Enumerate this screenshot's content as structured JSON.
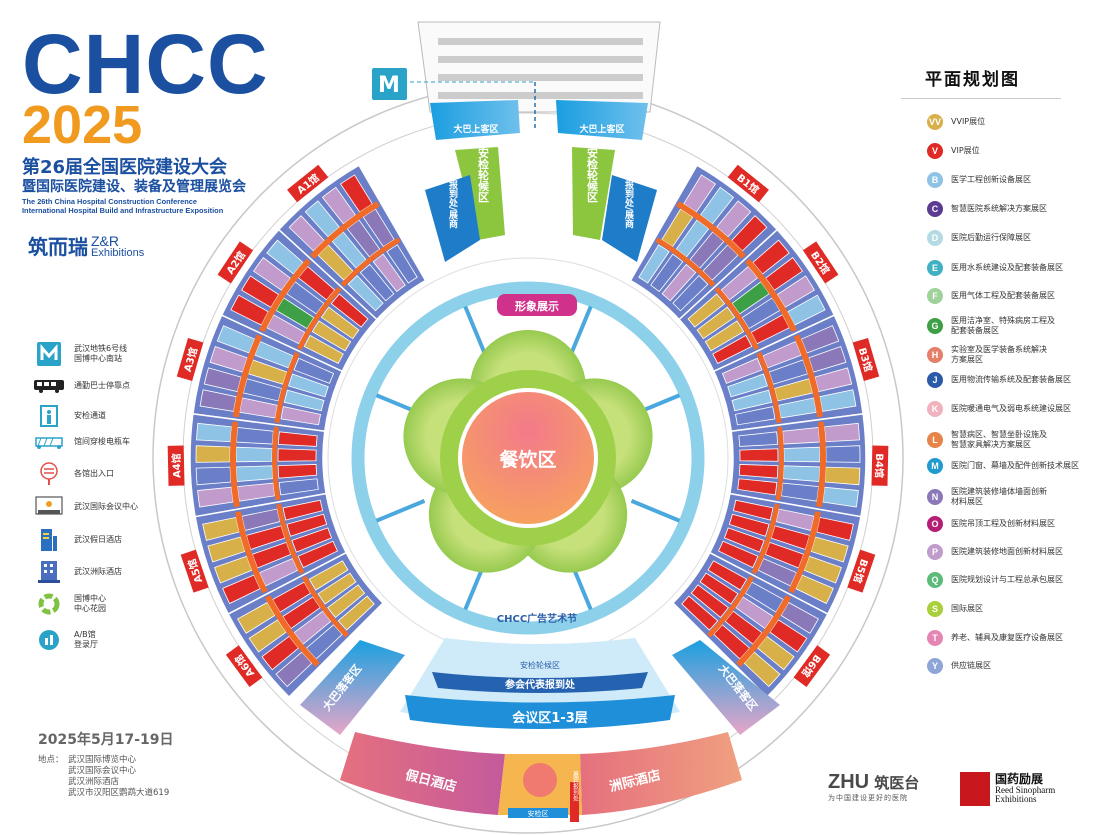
{
  "header": {
    "brand": "CHCC",
    "year": "2025",
    "title_cn_1": "第26届全国医院建设大会",
    "title_cn_2": "暨国际医院建设、装备及管理展览会",
    "title_en_1": "The 26th China Hospital Construction Conference",
    "title_en_2": "International Hospital Build and Infrastructure Exposition",
    "organizer_cn": "筑而瑞",
    "organizer_en_1": "Z&R",
    "organizer_en_2": "Exhibitions"
  },
  "left_legend": [
    {
      "icon": "metro-icon",
      "label": "武汉地铁6号线\n国博中心南站"
    },
    {
      "icon": "bus-icon",
      "label": "通勤巴士停靠点"
    },
    {
      "icon": "security-gate-icon",
      "label": "安检通道"
    },
    {
      "icon": "shuttle-cart-icon",
      "label": "馆间穿梭电瓶车"
    },
    {
      "icon": "entrance-exit-icon",
      "label": "各馆出入口"
    },
    {
      "icon": "conference-center-icon",
      "label": "武汉国际会议中心"
    },
    {
      "icon": "holiday-hotel-icon",
      "label": "武汉假日酒店"
    },
    {
      "icon": "intercontinental-hotel-icon",
      "label": "武汉洲际酒店"
    },
    {
      "icon": "garden-icon",
      "label": "国博中心\n中心花园"
    },
    {
      "icon": "registration-hall-icon",
      "label": "A/B馆\n登录厅"
    }
  ],
  "right_legend": {
    "title": "平面规划图",
    "items": [
      {
        "code": "VV",
        "color": "#d8b04a",
        "label": "VVIP展位"
      },
      {
        "code": "V",
        "color": "#e02a26",
        "label": "VIP展位"
      },
      {
        "code": "B",
        "color": "#8fc3e6",
        "label": "医学工程创新设备展区"
      },
      {
        "code": "C",
        "color": "#5b3c92",
        "label": "智慧医院系统解决方案展区"
      },
      {
        "code": "D",
        "color": "#b4dbe4",
        "label": "医院后勤运行保障展区"
      },
      {
        "code": "E",
        "color": "#3fb1c2",
        "label": "医用水系统建设及配套装备展区"
      },
      {
        "code": "F",
        "color": "#9fd19a",
        "label": "医用气体工程及配套装备展区"
      },
      {
        "code": "G",
        "color": "#3ea046",
        "label": "医用洁净室、特殊病房工程及\n配套装备展区"
      },
      {
        "code": "H",
        "color": "#e4806a",
        "label": "实验室及医学装备系统解决\n方案展区"
      },
      {
        "code": "J",
        "color": "#2b5aa8",
        "label": "医用物流传输系统及配套装备展区"
      },
      {
        "code": "K",
        "color": "#f0b3bd",
        "label": "医院暖通电气及弱电系统建设展区"
      },
      {
        "code": "L",
        "color": "#e8834a",
        "label": "智慧病区、智慧坐卧设施及\n智慧家具解决方案展区"
      },
      {
        "code": "M",
        "color": "#1f9bd0",
        "label": "医院门窗、幕墙及配件创新技术展区"
      },
      {
        "code": "N",
        "color": "#8a78b8",
        "label": "医院建筑装修墙体墙面创新\n材料展区"
      },
      {
        "code": "O",
        "color": "#b51e74",
        "label": "医院吊顶工程及创新材料展区"
      },
      {
        "code": "P",
        "color": "#c09bcb",
        "label": "医院建筑装修地面创新材料展区"
      },
      {
        "code": "Q",
        "color": "#5dbb7a",
        "label": "医院规划设计与工程总承包展区"
      },
      {
        "code": "S",
        "color": "#a9cf3a",
        "label": "国际展区"
      },
      {
        "code": "T",
        "color": "#e585b3",
        "label": "养老、辅具及康复医疗设备展区"
      },
      {
        "code": "Y",
        "color": "#8ea5d8",
        "label": "供应链展区"
      }
    ]
  },
  "map": {
    "halls_a": [
      "A1馆",
      "A2馆",
      "A3馆",
      "A4馆",
      "A5馆",
      "A6馆"
    ],
    "halls_b": [
      "B1馆",
      "B2馆",
      "B3馆",
      "B4馆",
      "B5馆",
      "B6馆"
    ],
    "metro_label": "M",
    "bus_pickup_left": "大巴上客区",
    "bus_pickup_right": "大巴上客区",
    "security_queue_left": "安检轮候区",
    "security_queue_right": "安检轮候区",
    "visitor_reg_left": "观众报到处/展商",
    "visitor_reg_right": "观众报到处/展商",
    "image_display": "形象展示",
    "dining": "餐饮区",
    "art_festival": "CHCC广告艺术节",
    "bus_dropoff_left": "大巴落客区",
    "bus_dropoff_right": "大巴落客区",
    "security_queue_bottom": "安检轮候区",
    "delegate_registration": "参会代表报到处",
    "conference_area": "会议区1-3层",
    "holiday_hotel": "假日酒店",
    "intercontinental_hotel": "洲际酒店",
    "security_area": "安检区",
    "guest_registration": "嘉宾报到处"
  },
  "footer": {
    "date": "2025年5月17-19日",
    "venue_label": "地点：",
    "venues": [
      "武汉国际博览中心",
      "武汉国际会议中心",
      "武汉洲际酒店",
      "武汉市汉阳区鹦鹉大道619"
    ]
  },
  "sponsors": {
    "zhu_logo": "ZHU",
    "zhu_cn": "筑医台",
    "zhu_slogan": "为中国建设更好的医院",
    "reed_cn": "国药励展",
    "reed_en_1": "Reed Sinopharm",
    "reed_en_2": "Exhibitions"
  },
  "colors": {
    "brand_blue": "#1b4fa0",
    "brand_orange": "#f09a20",
    "hall_red": "#e02a26",
    "hall_blue": "#6a7fc8",
    "aisle_orange": "#f06a28",
    "ring_blue": "#8dd0ea",
    "garden_green": "#8cc63f"
  }
}
